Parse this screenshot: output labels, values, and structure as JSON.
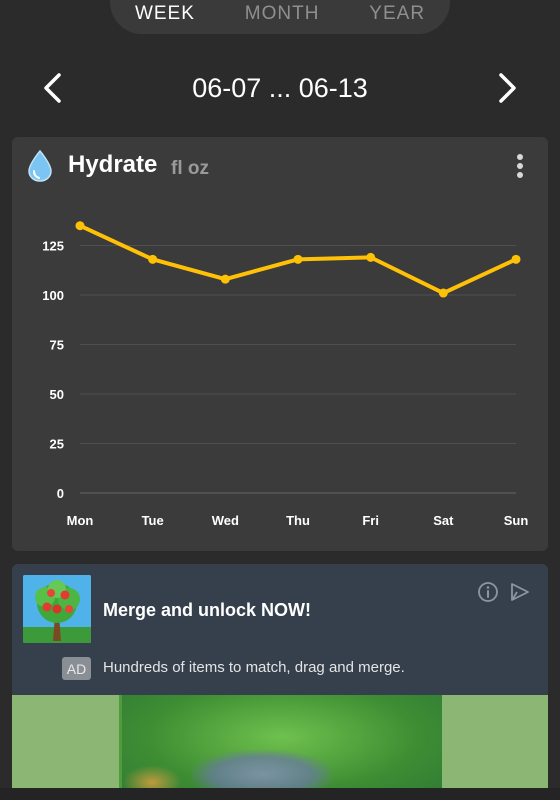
{
  "period_selector": {
    "options": [
      "WEEK",
      "MONTH",
      "YEAR"
    ],
    "selected": "WEEK"
  },
  "date_nav": {
    "range_label": "06-07 ... 06-13"
  },
  "hydrate_card": {
    "title": "Hydrate",
    "unit": "fl oz",
    "icons": {
      "title": "water-drop-icon",
      "menu": "kebab-menu-icon"
    }
  },
  "chart_data": {
    "type": "line",
    "categories": [
      "Mon",
      "Tue",
      "Wed",
      "Thu",
      "Fri",
      "Sat",
      "Sun"
    ],
    "series": [
      {
        "values": [
          135,
          118,
          108,
          118,
          119,
          101,
          118
        ],
        "color": "#ffc107"
      }
    ],
    "y_ticks": [
      0,
      25,
      50,
      75,
      100,
      125
    ],
    "ylim": [
      0,
      140
    ],
    "grid": true,
    "xlabel": "",
    "ylabel": ""
  },
  "ad": {
    "title": "Merge and unlock NOW!",
    "badge": "AD",
    "description": "Hundreds of items to match, drag and merge.",
    "icons": {
      "info": "info-icon",
      "play": "ad-choices-play-icon",
      "thumb": "tree-app-icon"
    }
  },
  "colors": {
    "background": "#2b2b2b",
    "card": "#3b3b3b",
    "line": "#ffc107",
    "ad_card": "#35404c"
  }
}
